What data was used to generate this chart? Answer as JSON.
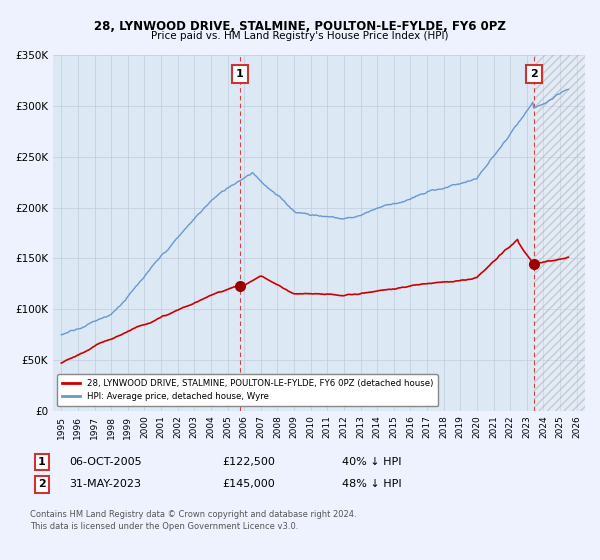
{
  "title": "28, LYNWOOD DRIVE, STALMINE, POULTON-LE-FYLDE, FY6 0PZ",
  "subtitle": "Price paid vs. HM Land Registry's House Price Index (HPI)",
  "legend_line1": "28, LYNWOOD DRIVE, STALMINE, POULTON-LE-FYLDE, FY6 0PZ (detached house)",
  "legend_line2": "HPI: Average price, detached house, Wyre",
  "transaction1_date": "06-OCT-2005",
  "transaction1_price": "£122,500",
  "transaction1_hpi": "40% ↓ HPI",
  "transaction1_x": 2005.75,
  "transaction1_y": 122500,
  "transaction2_date": "31-MAY-2023",
  "transaction2_price": "£145,000",
  "transaction2_hpi": "48% ↓ HPI",
  "transaction2_x": 2023.42,
  "transaction2_y": 145000,
  "red_color": "#cc0000",
  "blue_color": "#6699cc",
  "background_color": "#eef2ff",
  "plot_bg_color": "#dde8f5",
  "grid_color": "#b0c4de",
  "footer1": "Contains HM Land Registry data © Crown copyright and database right 2024.",
  "footer2": "This data is licensed under the Open Government Licence v3.0.",
  "ylim": [
    0,
    350000
  ],
  "xlim": [
    1994.5,
    2026.5
  ],
  "hatch_start": 2023.42
}
